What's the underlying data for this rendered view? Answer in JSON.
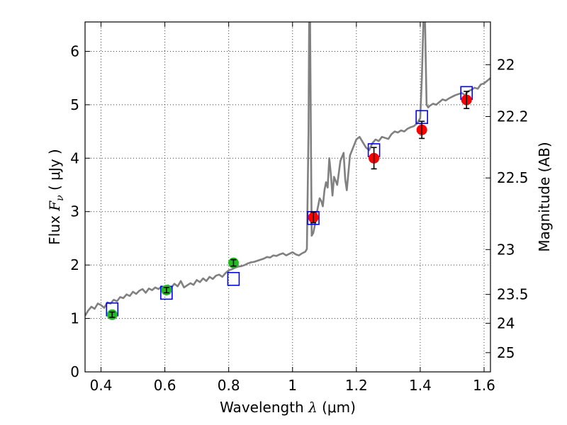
{
  "chart_data": {
    "type": "scatter",
    "xlabel_text": "Wavelength  ",
    "xlabel_symbol": "λ",
    "xlabel_unit": " (μm)",
    "ylabel_text": "Flux  ",
    "ylabel_symbol": "F",
    "ylabel_sub": "ν",
    "ylabel_unit": "  ( μJy )",
    "y2label": "Magnitude (AB)",
    "xlim": [
      0.35,
      1.62
    ],
    "ylim": [
      0,
      6.55
    ],
    "grid": true,
    "xticks": [
      0.4,
      0.6,
      0.8,
      1.0,
      1.2,
      1.4,
      1.6
    ],
    "xtick_labels": [
      "0.4",
      "0.6",
      "0.8",
      "1",
      "1.2",
      "1.4",
      "1.6"
    ],
    "yticks": [
      0,
      1,
      2,
      3,
      4,
      5,
      6
    ],
    "ytick_labels": [
      "0",
      "1",
      "2",
      "3",
      "4",
      "5",
      "6"
    ],
    "y2ticks": [
      {
        "label": "22",
        "flux": 5.75
      },
      {
        "label": "22.2",
        "flux": 4.78
      },
      {
        "label": "22.5",
        "flux": 3.63
      },
      {
        "label": "23",
        "flux": 2.29
      },
      {
        "label": "23.5",
        "flux": 1.45
      },
      {
        "label": "24",
        "flux": 0.91
      },
      {
        "label": "25",
        "flux": 0.36
      }
    ],
    "colors": {
      "model": "#808080",
      "optical": "#22bb22",
      "nir": "#ff0000",
      "model_box": "#0000ff",
      "errorbar": "#000000"
    },
    "series": [
      {
        "name": "model spectrum",
        "kind": "line",
        "x": [
          0.35,
          0.36,
          0.37,
          0.38,
          0.39,
          0.4,
          0.41,
          0.42,
          0.43,
          0.44,
          0.45,
          0.46,
          0.47,
          0.48,
          0.49,
          0.5,
          0.51,
          0.52,
          0.53,
          0.54,
          0.55,
          0.56,
          0.57,
          0.58,
          0.59,
          0.6,
          0.61,
          0.62,
          0.63,
          0.64,
          0.65,
          0.66,
          0.67,
          0.68,
          0.69,
          0.7,
          0.71,
          0.72,
          0.73,
          0.74,
          0.75,
          0.76,
          0.77,
          0.78,
          0.79,
          0.8,
          0.81,
          0.82,
          0.83,
          0.84,
          0.85,
          0.86,
          0.87,
          0.88,
          0.89,
          0.9,
          0.91,
          0.92,
          0.93,
          0.94,
          0.95,
          0.96,
          0.97,
          0.98,
          0.99,
          1.0,
          1.01,
          1.02,
          1.03,
          1.04,
          1.045,
          1.05,
          1.052,
          1.055,
          1.058,
          1.06,
          1.065,
          1.07,
          1.075,
          1.08,
          1.085,
          1.09,
          1.095,
          1.1,
          1.105,
          1.11,
          1.115,
          1.12,
          1.125,
          1.13,
          1.14,
          1.15,
          1.16,
          1.165,
          1.17,
          1.18,
          1.19,
          1.2,
          1.21,
          1.22,
          1.23,
          1.24,
          1.25,
          1.26,
          1.27,
          1.28,
          1.29,
          1.3,
          1.31,
          1.32,
          1.33,
          1.34,
          1.35,
          1.36,
          1.37,
          1.38,
          1.39,
          1.4,
          1.405,
          1.41,
          1.415,
          1.42,
          1.425,
          1.43,
          1.44,
          1.45,
          1.46,
          1.47,
          1.48,
          1.49,
          1.5,
          1.51,
          1.52,
          1.53,
          1.54,
          1.55,
          1.56,
          1.57,
          1.58,
          1.59,
          1.6,
          1.61,
          1.62
        ],
        "y": [
          1.05,
          1.15,
          1.22,
          1.18,
          1.28,
          1.25,
          1.2,
          1.3,
          1.28,
          1.35,
          1.32,
          1.4,
          1.38,
          1.45,
          1.42,
          1.5,
          1.46,
          1.52,
          1.55,
          1.48,
          1.56,
          1.53,
          1.58,
          1.55,
          1.6,
          1.57,
          1.62,
          1.58,
          1.65,
          1.6,
          1.7,
          1.58,
          1.62,
          1.66,
          1.63,
          1.72,
          1.68,
          1.75,
          1.7,
          1.78,
          1.74,
          1.8,
          1.82,
          1.78,
          1.85,
          1.9,
          1.92,
          1.95,
          1.97,
          1.98,
          2.0,
          2.03,
          2.05,
          2.06,
          2.08,
          2.1,
          2.12,
          2.15,
          2.14,
          2.18,
          2.17,
          2.2,
          2.22,
          2.18,
          2.21,
          2.24,
          2.2,
          2.18,
          2.22,
          2.25,
          2.3,
          4.5,
          6.55,
          6.55,
          4.0,
          2.55,
          2.6,
          2.75,
          2.95,
          3.1,
          3.25,
          3.2,
          3.1,
          3.4,
          3.55,
          3.45,
          4.0,
          3.7,
          3.3,
          3.65,
          3.5,
          3.95,
          4.1,
          3.6,
          3.4,
          4.05,
          4.2,
          4.35,
          4.4,
          4.3,
          4.2,
          4.15,
          4.28,
          4.35,
          4.32,
          4.4,
          4.38,
          4.36,
          4.45,
          4.5,
          4.48,
          4.52,
          4.5,
          4.55,
          4.58,
          4.6,
          4.65,
          4.75,
          5.5,
          6.55,
          6.55,
          5.0,
          4.95,
          4.98,
          5.02,
          5.0,
          5.05,
          5.1,
          5.08,
          5.12,
          5.15,
          5.18,
          5.2,
          5.22,
          5.18,
          5.25,
          5.28,
          5.32,
          5.3,
          5.38,
          5.4,
          5.45,
          5.5
        ]
      },
      {
        "name": "model band flux",
        "kind": "square",
        "x": [
          0.435,
          0.605,
          0.815,
          1.065,
          1.255,
          1.405,
          1.545
        ],
        "y": [
          1.17,
          1.48,
          1.74,
          2.88,
          4.15,
          4.77,
          5.22
        ]
      },
      {
        "name": "optical photometry",
        "kind": "point",
        "x": [
          0.435,
          0.605,
          0.815
        ],
        "y": [
          1.07,
          1.53,
          2.04
        ],
        "err": [
          0.05,
          0.05,
          0.06
        ]
      },
      {
        "name": "NIR photometry",
        "kind": "point",
        "x": [
          1.065,
          1.255,
          1.405,
          1.545
        ],
        "y": [
          2.89,
          4.0,
          4.53,
          5.09
        ],
        "err": [
          0.1,
          0.2,
          0.16,
          0.16
        ]
      }
    ]
  }
}
